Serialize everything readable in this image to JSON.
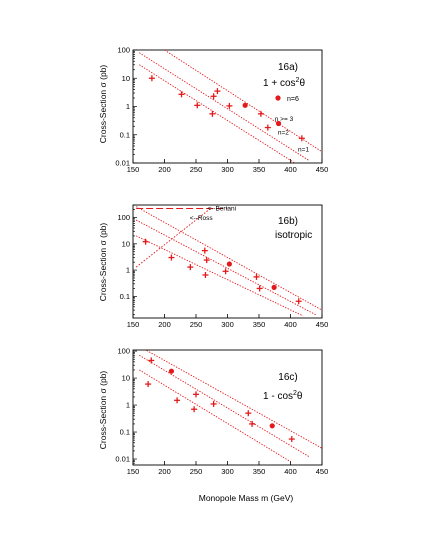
{
  "figure": {
    "xlabel": "Monopole Mass  m  (GeV)",
    "ylabel": "Cross-Section  σ  (pb)"
  },
  "colors": {
    "series": "#e31a1c",
    "axis": "#000000",
    "dashed": "#e31a1c"
  },
  "chart_data": [
    {
      "type": "scatter",
      "panel_label": "16a)",
      "subtitle_main": "1  + cos",
      "subtitle_sup": "2",
      "subtitle_end": "θ",
      "legend_marker_label": "n=6",
      "legend_position": "right",
      "xlim": [
        150,
        450
      ],
      "ylim": [
        0.01,
        100
      ],
      "yscale": "log",
      "x_ticks": [
        150,
        200,
        250,
        300,
        350,
        400,
        450
      ],
      "y_ticks": [
        {
          "v": 0.01,
          "label": "0.01"
        },
        {
          "v": 0.1,
          "label": "0.1"
        },
        {
          "v": 1,
          "label": "1"
        },
        {
          "v": 10,
          "label": "10"
        },
        {
          "v": 100,
          "label": "100"
        }
      ],
      "fit_lines": [
        {
          "name": "n=1",
          "x": [
            160,
            410
          ],
          "y": [
            30,
            0.009
          ]
        },
        {
          "name": "n=2",
          "x": [
            160,
            430
          ],
          "y": [
            80,
            0.012
          ]
        },
        {
          "name": "n >= 3",
          "x": [
            200,
            450
          ],
          "y": [
            100,
            0.025
          ]
        }
      ],
      "line_labels": [
        {
          "text": "n=1",
          "x": 412,
          "y": 0.03
        },
        {
          "text": "n=2",
          "x": 380,
          "y": 0.12
        },
        {
          "text": "n >= 3",
          "x": 375,
          "y": 0.36
        }
      ],
      "points": [
        {
          "x": 180,
          "y": 10,
          "marker": "plus"
        },
        {
          "x": 227,
          "y": 2.7,
          "marker": "plus"
        },
        {
          "x": 252,
          "y": 1.1,
          "marker": "plus"
        },
        {
          "x": 276,
          "y": 0.55,
          "marker": "plus"
        },
        {
          "x": 278,
          "y": 2.3,
          "marker": "plus"
        },
        {
          "x": 284,
          "y": 3.5,
          "marker": "plus"
        },
        {
          "x": 303,
          "y": 1.05,
          "marker": "plus"
        },
        {
          "x": 328,
          "y": 1.1,
          "marker": "dot"
        },
        {
          "x": 353,
          "y": 0.55,
          "marker": "plus"
        },
        {
          "x": 364,
          "y": 0.18,
          "marker": "plus"
        },
        {
          "x": 381,
          "y": 0.25,
          "marker": "dot"
        },
        {
          "x": 418,
          "y": 0.075,
          "marker": "plus"
        }
      ]
    },
    {
      "type": "scatter",
      "panel_label": "16b)",
      "subtitle_main": "isotropic",
      "subtitle_sup": "",
      "subtitle_end": "",
      "xlim": [
        150,
        450
      ],
      "ylim": [
        0.015,
        300
      ],
      "yscale": "log",
      "x_ticks": [
        150,
        200,
        250,
        300,
        350,
        400,
        450
      ],
      "y_ticks": [
        {
          "v": 0.1,
          "label": "0.1"
        },
        {
          "v": 1,
          "label": "1"
        },
        {
          "v": 10,
          "label": "10"
        },
        {
          "v": 100,
          "label": "100"
        }
      ],
      "fit_lines": [
        {
          "name": "lower",
          "x": [
            155,
            420
          ],
          "y": [
            20,
            0.018
          ]
        },
        {
          "name": "middle",
          "x": [
            155,
            440
          ],
          "y": [
            80,
            0.02
          ]
        },
        {
          "name": "upper",
          "x": [
            155,
            450
          ],
          "y": [
            260,
            0.03
          ]
        }
      ],
      "bertani_line": {
        "label": "<--Bertani",
        "x": [
          155,
          300
        ],
        "y": 220
      },
      "ross_line": {
        "label": "<--Ross",
        "x": [
          155,
          275
        ],
        "y": [
          1.3,
          240
        ]
      },
      "annotations": [
        {
          "text": "<--Bertani",
          "x": 268,
          "y": 220
        },
        {
          "text": "<--Ross",
          "x": 240,
          "y": 95
        }
      ],
      "points": [
        {
          "x": 170,
          "y": 12,
          "marker": "plus"
        },
        {
          "x": 211,
          "y": 3.0,
          "marker": "plus"
        },
        {
          "x": 241,
          "y": 1.3,
          "marker": "plus"
        },
        {
          "x": 264,
          "y": 5.5,
          "marker": "plus"
        },
        {
          "x": 265,
          "y": 0.65,
          "marker": "plus"
        },
        {
          "x": 267,
          "y": 2.4,
          "marker": "plus"
        },
        {
          "x": 297,
          "y": 0.9,
          "marker": "plus"
        },
        {
          "x": 303,
          "y": 1.7,
          "marker": "dot"
        },
        {
          "x": 346,
          "y": 0.55,
          "marker": "plus"
        },
        {
          "x": 351,
          "y": 0.2,
          "marker": "plus"
        },
        {
          "x": 374,
          "y": 0.22,
          "marker": "dot"
        },
        {
          "x": 413,
          "y": 0.065,
          "marker": "plus"
        }
      ]
    },
    {
      "type": "scatter",
      "panel_label": "16c)",
      "subtitle_main": "1  - cos",
      "subtitle_sup": "2",
      "subtitle_end": "θ",
      "xlim": [
        150,
        450
      ],
      "ylim": [
        0.006,
        110
      ],
      "yscale": "log",
      "x_ticks": [
        150,
        200,
        250,
        300,
        350,
        400,
        450
      ],
      "y_ticks": [
        {
          "v": 0.01,
          "label": "0.01"
        },
        {
          "v": 0.1,
          "label": "0.1"
        },
        {
          "v": 1,
          "label": "1"
        },
        {
          "v": 10,
          "label": "10"
        },
        {
          "v": 100,
          "label": "100"
        }
      ],
      "fit_lines": [
        {
          "name": "lower",
          "x": [
            160,
            400
          ],
          "y": [
            20,
            0.008
          ]
        },
        {
          "name": "middle",
          "x": [
            160,
            430
          ],
          "y": [
            70,
            0.012
          ]
        },
        {
          "name": "upper",
          "x": [
            160,
            450
          ],
          "y": [
            150,
            0.025
          ]
        }
      ],
      "points": [
        {
          "x": 174,
          "y": 6,
          "marker": "plus"
        },
        {
          "x": 179,
          "y": 45,
          "marker": "plus"
        },
        {
          "x": 211,
          "y": 18,
          "marker": "dot"
        },
        {
          "x": 220,
          "y": 1.5,
          "marker": "plus"
        },
        {
          "x": 247,
          "y": 0.7,
          "marker": "plus"
        },
        {
          "x": 250,
          "y": 2.5,
          "marker": "plus"
        },
        {
          "x": 278,
          "y": 1.1,
          "marker": "plus"
        },
        {
          "x": 333,
          "y": 0.5,
          "marker": "plus"
        },
        {
          "x": 339,
          "y": 0.2,
          "marker": "plus"
        },
        {
          "x": 371,
          "y": 0.17,
          "marker": "dot"
        },
        {
          "x": 402,
          "y": 0.055,
          "marker": "plus"
        }
      ]
    }
  ]
}
